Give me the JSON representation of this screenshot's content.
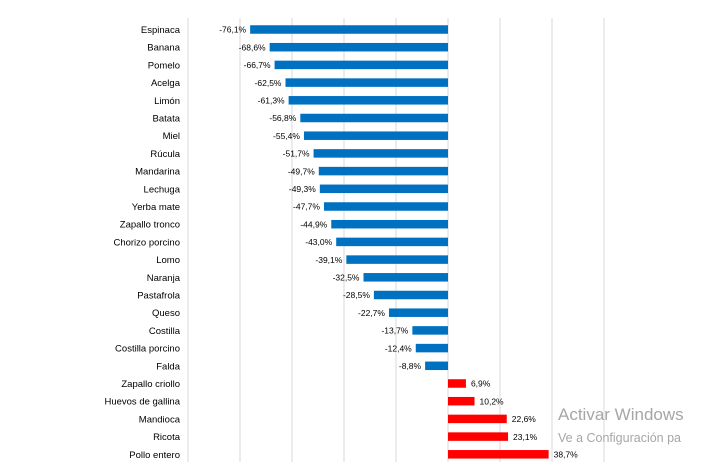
{
  "chart_data": {
    "type": "bar",
    "orientation": "horizontal",
    "categories": [
      "Espinaca",
      "Banana",
      "Pomelo",
      "Acelga",
      "Limón",
      "Batata",
      "Miel",
      "Rúcula",
      "Mandarina",
      "Lechuga",
      "Yerba mate",
      "Zapallo tronco",
      "Chorizo porcino",
      "Lomo",
      "Naranja",
      "Pastafrola",
      "Queso",
      "Costilla",
      "Costilla porcino",
      "Falda",
      "Zapallo criollo",
      "Huevos de gallina",
      "Mandioca",
      "Ricota",
      "Pollo entero"
    ],
    "values": [
      -76.1,
      -68.6,
      -66.7,
      -62.5,
      -61.3,
      -56.8,
      -55.4,
      -51.7,
      -49.7,
      -49.3,
      -47.7,
      -44.9,
      -43.0,
      -39.1,
      -32.5,
      -28.5,
      -22.7,
      -13.7,
      -12.4,
      -8.8,
      6.9,
      10.2,
      22.6,
      23.1,
      38.7
    ],
    "value_labels": [
      "-76,1%",
      "-68,6%",
      "-66,7%",
      "-62,5%",
      "-61,3%",
      "-56,8%",
      "-55,4%",
      "-51,7%",
      "-49,7%",
      "-49,3%",
      "-47,7%",
      "-44,9%",
      "-43,0%",
      "-39,1%",
      "-32,5%",
      "-28,5%",
      "-22,7%",
      "-13,7%",
      "-12,4%",
      "-8,8%",
      "6,9%",
      "10,2%",
      "22,6%",
      "23,1%",
      "38,7%"
    ],
    "xlim": [
      -100,
      60
    ],
    "grid": true,
    "colors": {
      "negative": "#0070c0",
      "positive": "#ff0000",
      "grid": "#d9d9d9"
    }
  },
  "watermark": {
    "title": "Activar Windows",
    "subtitle": "Ve a Configuración pa"
  }
}
